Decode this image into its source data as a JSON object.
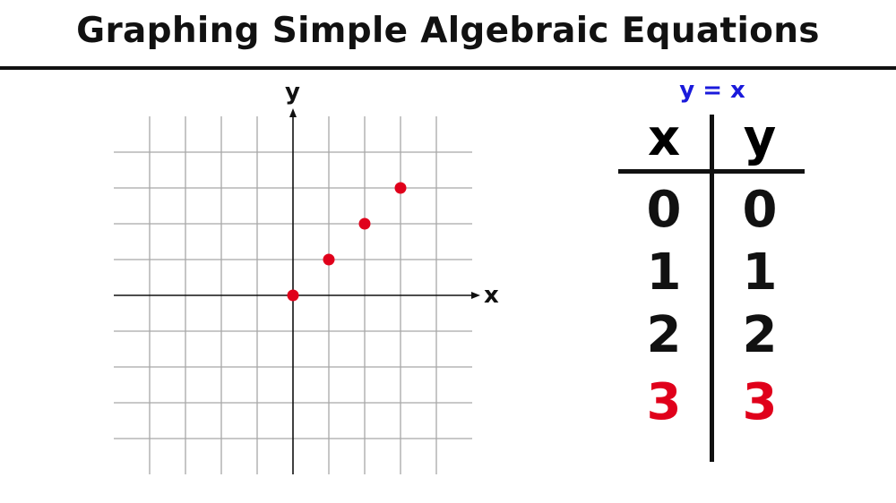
{
  "title": "Graphing Simple Algebraic Equations",
  "chart_data": {
    "type": "scatter",
    "xlabel": "x",
    "ylabel": "y",
    "xlim": [
      -5,
      5
    ],
    "ylim": [
      -5,
      5
    ],
    "grid": true,
    "grid_step": 1,
    "points": [
      {
        "x": 0,
        "y": 0
      },
      {
        "x": 1,
        "y": 1
      },
      {
        "x": 2,
        "y": 2
      },
      {
        "x": 3,
        "y": 3
      }
    ],
    "point_color": "#e0001b"
  },
  "table": {
    "equation": "y = x",
    "equation_color": "#1a1adb",
    "headers": [
      "x",
      "y"
    ],
    "rows": [
      {
        "x": "0",
        "y": "0",
        "highlight": false
      },
      {
        "x": "1",
        "y": "1",
        "highlight": false
      },
      {
        "x": "2",
        "y": "2",
        "highlight": false
      },
      {
        "x": "3",
        "y": "3",
        "highlight": true
      }
    ],
    "highlight_color": "#e0001b"
  }
}
